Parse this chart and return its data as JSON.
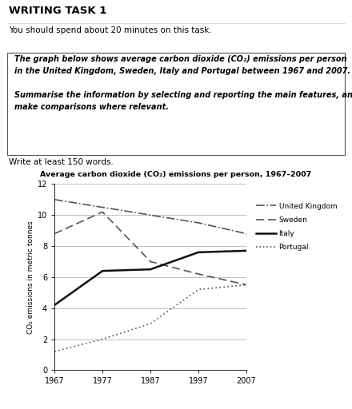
{
  "title": "Average carbon dioxide (CO₂) emissions per person, 1967–2007",
  "ylabel": "CO₂ emissions in metric tonnes",
  "years": [
    1967,
    1977,
    1987,
    1997,
    2007
  ],
  "series": {
    "United Kingdom": [
      11.0,
      10.5,
      10.0,
      9.5,
      8.8
    ],
    "Sweden": [
      8.8,
      10.2,
      7.0,
      6.2,
      5.5
    ],
    "Italy": [
      4.2,
      6.4,
      6.5,
      7.6,
      7.7
    ],
    "Portugal": [
      1.2,
      2.0,
      3.0,
      5.2,
      5.5
    ]
  },
  "line_styles": {
    "United Kingdom": "dashdot",
    "Sweden": "dashed",
    "Italy": "solid",
    "Portugal": "dotted"
  },
  "line_colors": {
    "United Kingdom": "#555555",
    "Sweden": "#555555",
    "Italy": "#111111",
    "Portugal": "#555555"
  },
  "line_widths": {
    "United Kingdom": 1.2,
    "Sweden": 1.2,
    "Italy": 1.8,
    "Portugal": 1.2
  },
  "ylim": [
    0,
    12
  ],
  "yticks": [
    0,
    2,
    4,
    6,
    8,
    10,
    12
  ],
  "xticks": [
    1967,
    1977,
    1987,
    1997,
    2007
  ],
  "writing_task_title": "WRITING TASK 1",
  "instruction_line": "You should spend about 20 minutes on this task.",
  "box_line1": "The graph below shows average carbon dioxide (CO₂) emissions per person",
  "box_line2": "in the United Kingdom, Sweden, Italy and Portugal between 1967 and 2007.",
  "box_line3": "Summarise the information by selecting and reporting the main features, and",
  "box_line4": "make comparisons where relevant.",
  "footer_text": "Write at least 150 words.",
  "bg_color": "#ffffff",
  "text_color": "#000000",
  "grid_color": "#aaaaaa",
  "legend_entries": [
    "United Kingdom",
    "Sweden",
    "Italy",
    "Portugal"
  ]
}
